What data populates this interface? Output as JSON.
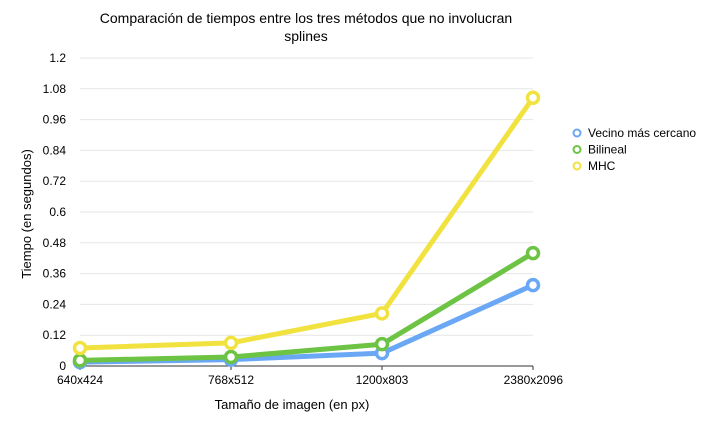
{
  "chart_data": {
    "type": "line",
    "title": "Comparación de tiempos entre los tres métodos que no involucran splines",
    "title_lines": [
      "Comparación de tiempos entre los tres métodos que no involucran",
      "splines"
    ],
    "xlabel": "Tamaño de imagen (en px)",
    "ylabel": "Tiempo (en segundos)",
    "categories": [
      "640x424",
      "768x512",
      "1200x803",
      "2380x2096"
    ],
    "ylim": [
      0,
      1.2
    ],
    "yticks": [
      "0",
      "0.12",
      "0.24",
      "0.36",
      "0.48",
      "0.6",
      "0.72",
      "0.84",
      "0.96",
      "1.08",
      "1.2"
    ],
    "grid": true,
    "legend_position": "right",
    "series": [
      {
        "name": "Vecino más cercano",
        "color": "#6aa8f5",
        "values": [
          0.015,
          0.025,
          0.05,
          0.315
        ]
      },
      {
        "name": "Bilineal",
        "color": "#6cc344",
        "values": [
          0.022,
          0.035,
          0.085,
          0.44
        ]
      },
      {
        "name": "MHC",
        "color": "#f1e240",
        "values": [
          0.07,
          0.09,
          0.205,
          1.045
        ]
      }
    ]
  }
}
